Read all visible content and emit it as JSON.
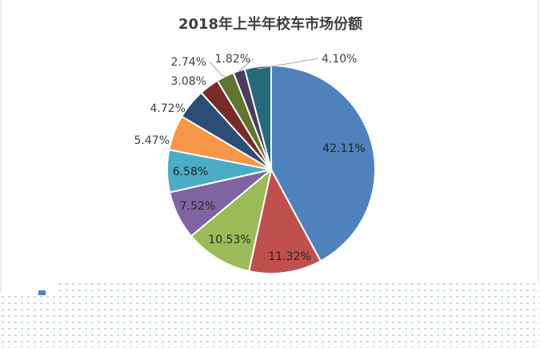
{
  "chart_data": {
    "type": "pie",
    "title": "2018年上半年校车市场份额",
    "slices": [
      {
        "label": "42.11%",
        "value": 42.11,
        "color": "#4F81BD"
      },
      {
        "label": "11.32%",
        "value": 11.32,
        "color": "#C0504D"
      },
      {
        "label": "10.53%",
        "value": 10.53,
        "color": "#9BBB59"
      },
      {
        "label": "7.52%",
        "value": 7.52,
        "color": "#8064A2"
      },
      {
        "label": "6.58%",
        "value": 6.58,
        "color": "#4BACC6"
      },
      {
        "label": "5.47%",
        "value": 5.47,
        "color": "#F79646"
      },
      {
        "label": "4.72%",
        "value": 4.72,
        "color": "#2C4D75"
      },
      {
        "label": "3.08%",
        "value": 3.08,
        "color": "#772C2A"
      },
      {
        "label": "2.74%",
        "value": 2.74,
        "color": "#5F7530"
      },
      {
        "label": "1.82%",
        "value": 1.82,
        "color": "#4D3B62"
      },
      {
        "label": "4.10%",
        "value": 4.1,
        "color": "#276A7C"
      }
    ],
    "legend": "none",
    "grid": false
  }
}
